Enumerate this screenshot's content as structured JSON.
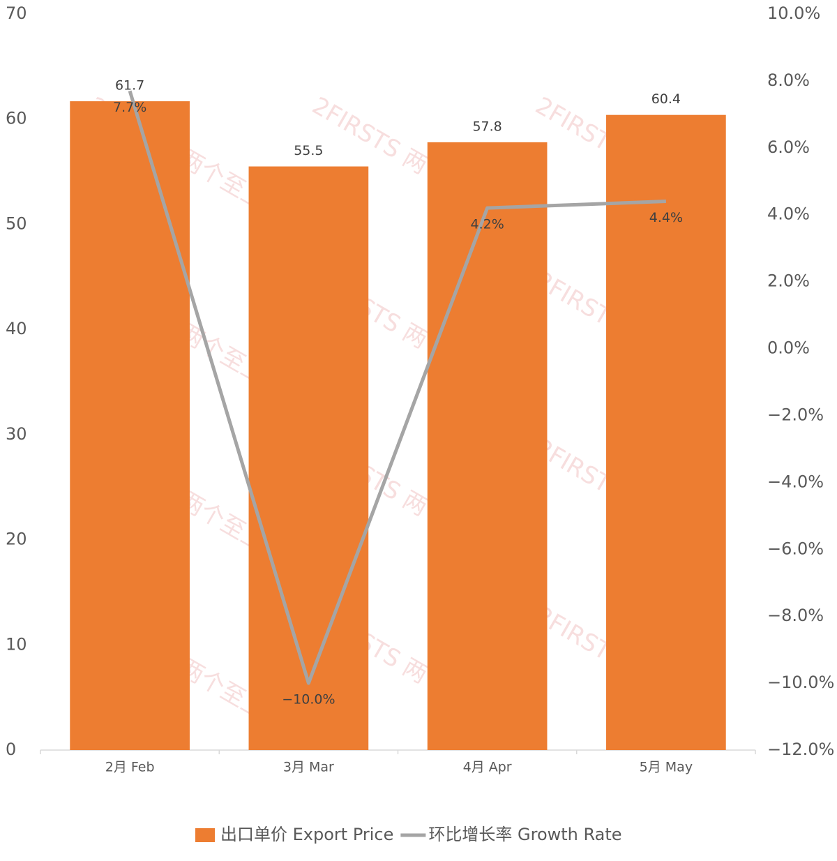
{
  "chart_data": {
    "type": "bar",
    "watermark": "2FIRSTS 两个至上",
    "categories": [
      "2月 Feb",
      "3月 Mar",
      "4月 Apr",
      "5月 May"
    ],
    "series": [
      {
        "name": "出口单价 Export Price",
        "type": "bar",
        "color": "#ed7d31",
        "values": [
          61.7,
          55.5,
          57.8,
          60.4
        ]
      },
      {
        "name": "环比增长率 Growth Rate",
        "type": "line",
        "axis": "y2",
        "color": "#a5a5a5",
        "values": [
          7.7,
          -10.0,
          4.2,
          4.4
        ],
        "value_labels": [
          "7.7%",
          "−10.0%",
          "4.2%",
          "4.4%"
        ]
      }
    ],
    "ylim": [
      0,
      70
    ],
    "yticks": [
      0,
      10,
      20,
      30,
      40,
      50,
      60,
      70
    ],
    "y2lim": [
      -12,
      10
    ],
    "y2ticks": [
      {
        "value": -12,
        "label": "−12.0%"
      },
      {
        "value": -10,
        "label": "−10.0%"
      },
      {
        "value": -8,
        "label": "−8.0%"
      },
      {
        "value": -6,
        "label": "−6.0%"
      },
      {
        "value": -4,
        "label": "−4.0%"
      },
      {
        "value": -2,
        "label": "−2.0%"
      },
      {
        "value": 0,
        "label": "0.0%"
      },
      {
        "value": 2,
        "label": "2.0%"
      },
      {
        "value": 4,
        "label": "4.0%"
      },
      {
        "value": 6,
        "label": "6.0%"
      },
      {
        "value": 8,
        "label": "8.0%"
      },
      {
        "value": 10,
        "label": "10.0%"
      }
    ],
    "legend": "bottom"
  }
}
